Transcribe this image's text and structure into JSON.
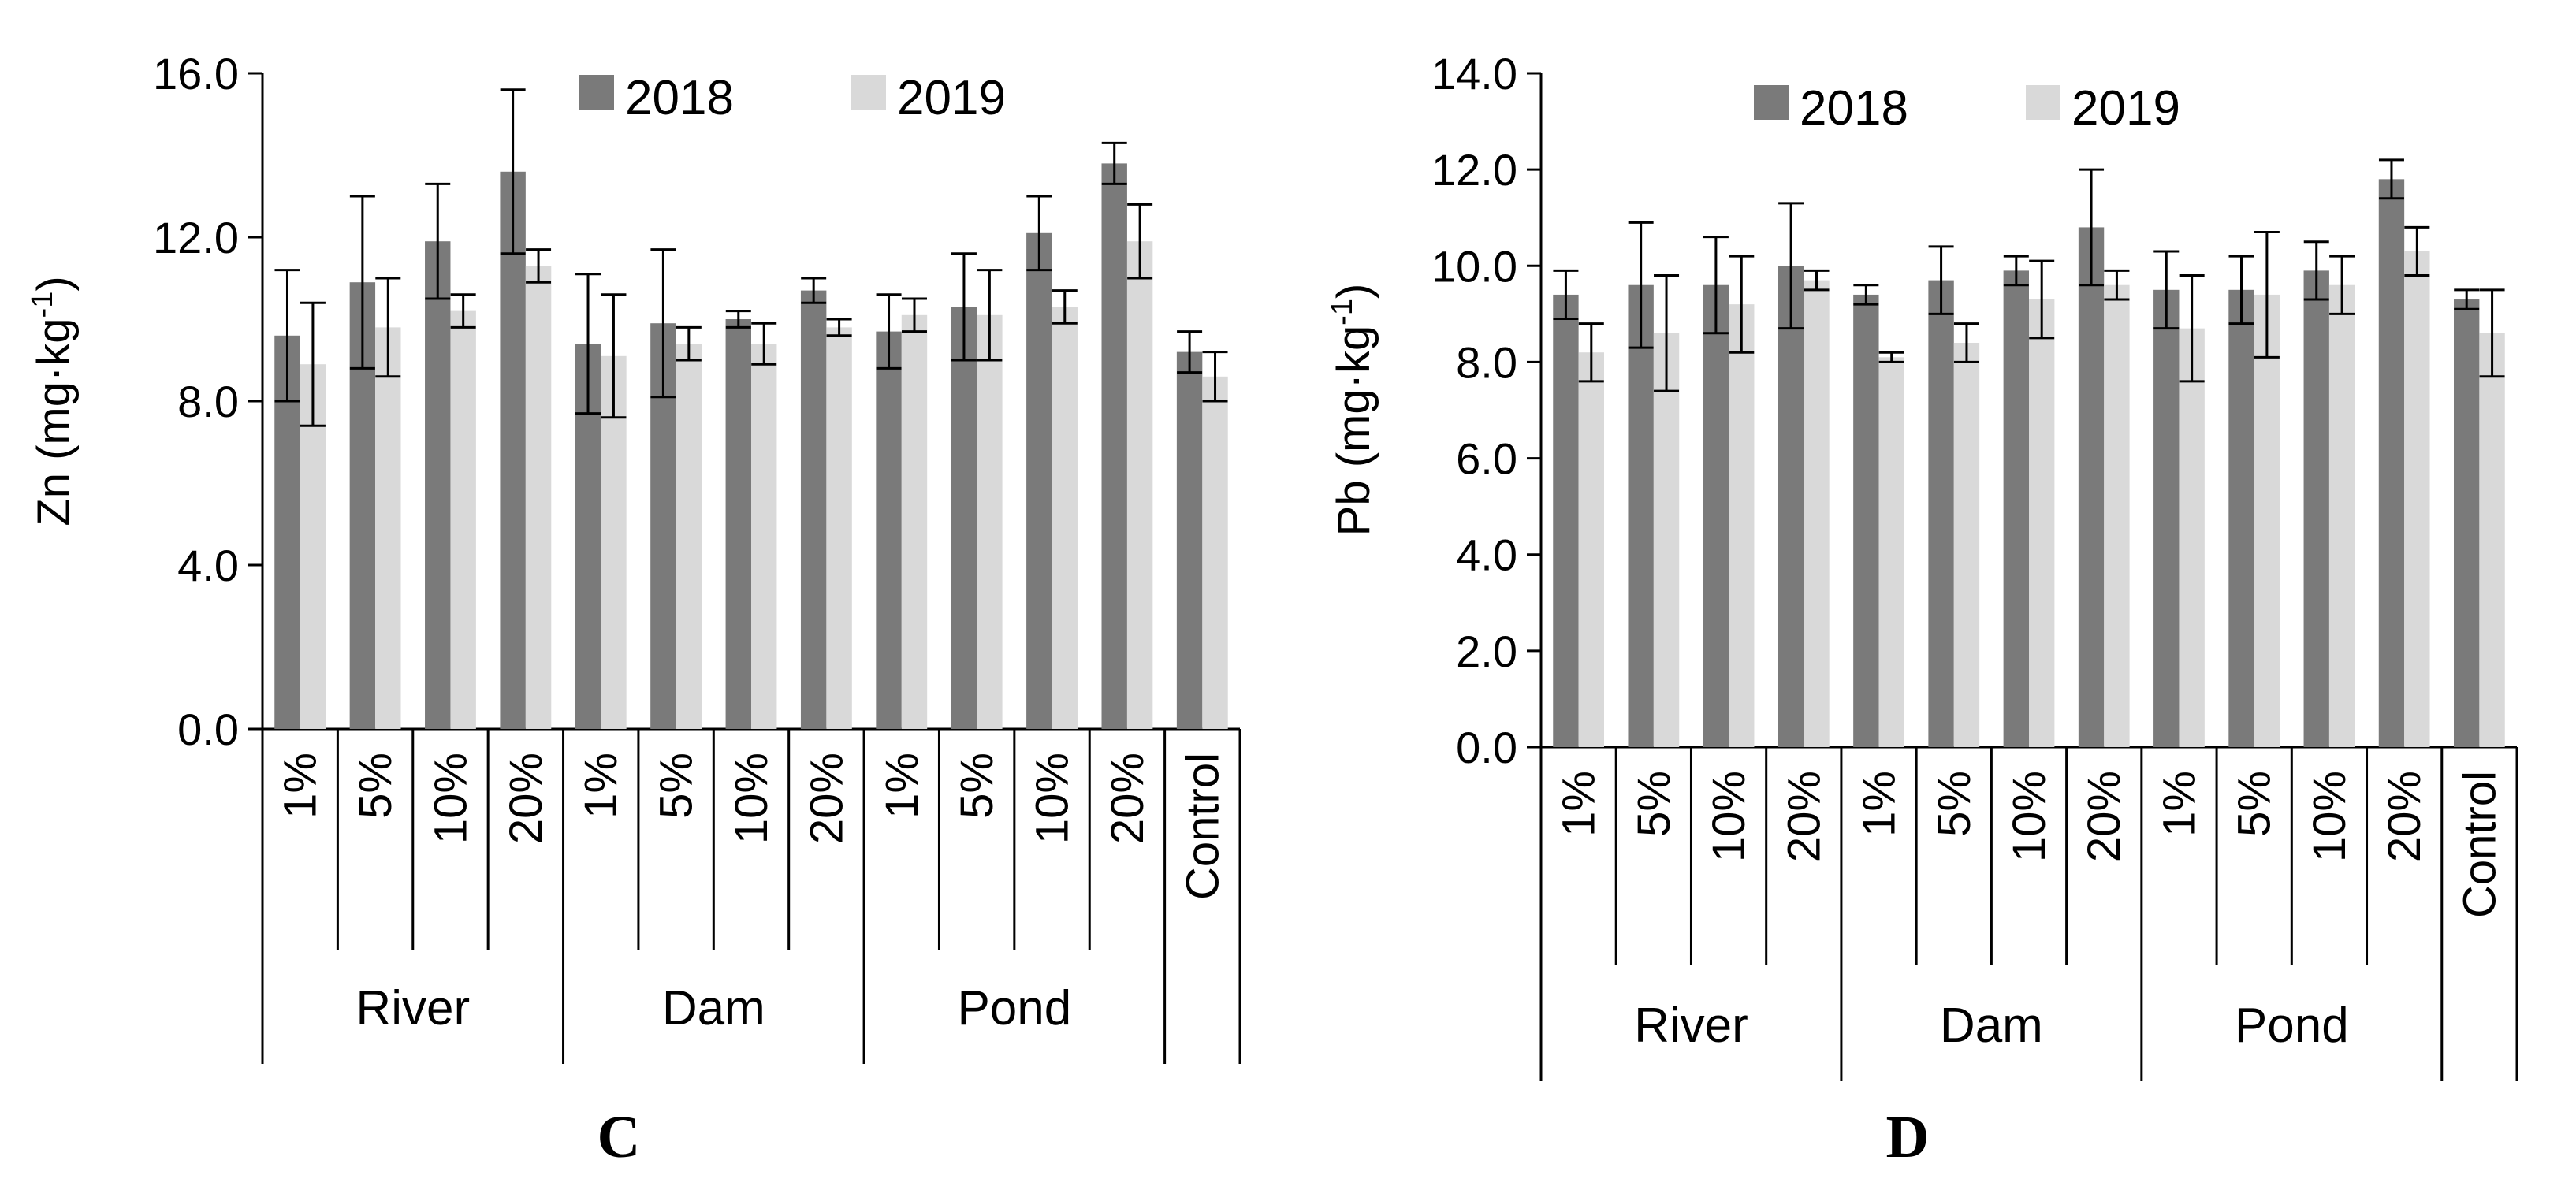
{
  "colors": {
    "series2018": "#7a7a7a",
    "series2019": "#d9d9d9",
    "axis": "#000000"
  },
  "chart_data": [
    {
      "type": "bar",
      "panel_label": "C",
      "ylabel": {
        "element": "Zn",
        "unit": "(mg·kg",
        "exp": "-1",
        "close": ")"
      },
      "ylim": [
        0,
        16
      ],
      "yticks": [
        "0.0",
        "4.0",
        "8.0",
        "12.0",
        "16.0"
      ],
      "ytick_values": [
        0,
        4,
        8,
        12,
        16
      ],
      "categories": [
        "1%",
        "5%",
        "10%",
        "20%",
        "1%",
        "5%",
        "10%",
        "20%",
        "1%",
        "5%",
        "10%",
        "20%",
        "Control"
      ],
      "groups": [
        {
          "label": "River",
          "count": 4
        },
        {
          "label": "Dam",
          "count": 4
        },
        {
          "label": "Pond",
          "count": 4
        },
        {
          "label": "",
          "count": 1
        }
      ],
      "series": [
        {
          "name": "2018",
          "values": [
            9.6,
            10.9,
            11.9,
            13.6,
            9.4,
            9.9,
            10.0,
            10.7,
            9.7,
            10.3,
            12.1,
            13.8,
            9.2
          ],
          "errors": [
            1.6,
            2.1,
            1.4,
            2.0,
            1.7,
            1.8,
            0.2,
            0.3,
            0.9,
            1.3,
            0.9,
            0.5,
            0.5
          ]
        },
        {
          "name": "2019",
          "values": [
            8.9,
            9.8,
            10.2,
            11.3,
            9.1,
            9.4,
            9.4,
            9.8,
            10.1,
            10.1,
            10.3,
            11.9,
            8.6
          ],
          "errors": [
            1.5,
            1.2,
            0.4,
            0.4,
            1.5,
            0.4,
            0.5,
            0.2,
            0.4,
            1.1,
            0.4,
            0.9,
            0.6
          ]
        }
      ]
    },
    {
      "type": "bar",
      "panel_label": "D",
      "ylabel": {
        "element": "Pb",
        "unit": "(mg·kg",
        "exp": "-1",
        "close": ")"
      },
      "ylim": [
        0,
        14
      ],
      "yticks": [
        "0.0",
        "2.0",
        "4.0",
        "6.0",
        "8.0",
        "10.0",
        "12.0",
        "14.0"
      ],
      "ytick_values": [
        0,
        2,
        4,
        6,
        8,
        10,
        12,
        14
      ],
      "categories": [
        "1%",
        "5%",
        "10%",
        "20%",
        "1%",
        "5%",
        "10%",
        "20%",
        "1%",
        "5%",
        "10%",
        "20%",
        "Control"
      ],
      "groups": [
        {
          "label": "River",
          "count": 4
        },
        {
          "label": "Dam",
          "count": 4
        },
        {
          "label": "Pond",
          "count": 4
        },
        {
          "label": "",
          "count": 1
        }
      ],
      "series": [
        {
          "name": "2018",
          "values": [
            9.4,
            9.6,
            9.6,
            10.0,
            9.4,
            9.7,
            9.9,
            10.8,
            9.5,
            9.5,
            9.9,
            11.8,
            9.3
          ],
          "errors": [
            0.5,
            1.3,
            1.0,
            1.3,
            0.2,
            0.7,
            0.3,
            1.2,
            0.8,
            0.7,
            0.6,
            0.4,
            0.2
          ]
        },
        {
          "name": "2019",
          "values": [
            8.2,
            8.6,
            9.2,
            9.7,
            8.1,
            8.4,
            9.3,
            9.6,
            8.7,
            9.4,
            9.6,
            10.3,
            8.6
          ],
          "errors": [
            0.6,
            1.2,
            1.0,
            0.2,
            0.1,
            0.4,
            0.8,
            0.3,
            1.1,
            1.3,
            0.6,
            0.5,
            0.9
          ]
        }
      ]
    }
  ]
}
